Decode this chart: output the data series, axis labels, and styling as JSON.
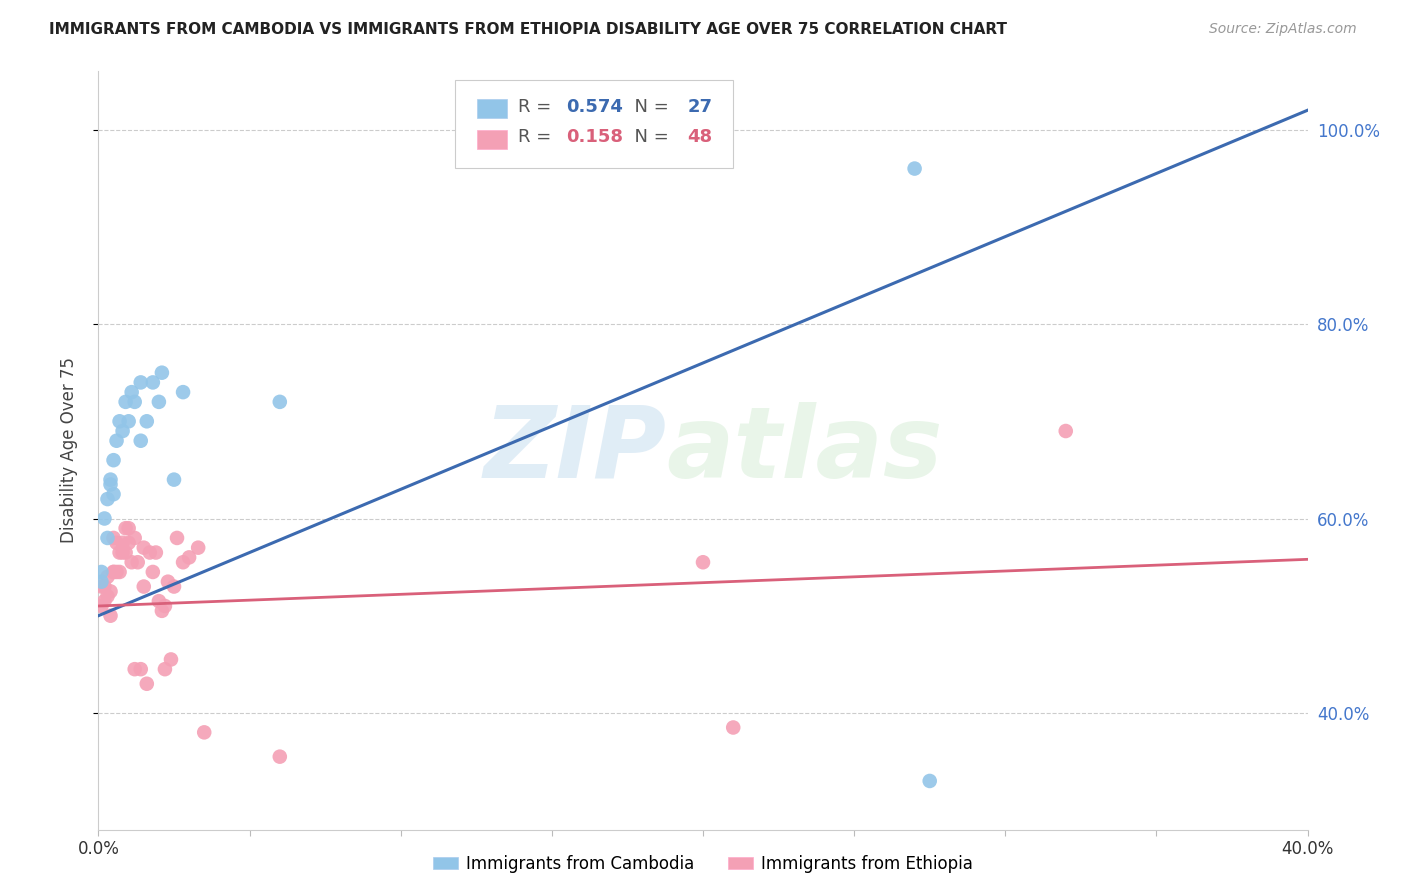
{
  "title": "IMMIGRANTS FROM CAMBODIA VS IMMIGRANTS FROM ETHIOPIA DISABILITY AGE OVER 75 CORRELATION CHART",
  "source": "Source: ZipAtlas.com",
  "ylabel": "Disability Age Over 75",
  "legend_label_blue": "Immigrants from Cambodia",
  "legend_label_pink": "Immigrants from Ethiopia",
  "r_blue": 0.574,
  "n_blue": 27,
  "r_pink": 0.158,
  "n_pink": 48,
  "xmin": 0.0,
  "xmax": 0.4,
  "ymin": 0.28,
  "ymax": 1.06,
  "y_ticks_right": [
    0.4,
    0.6,
    0.8,
    1.0
  ],
  "y_tick_labels_right": [
    "40.0%",
    "60.0%",
    "80.0%",
    "100.0%"
  ],
  "watermark_zip": "ZIP",
  "watermark_atlas": "atlas",
  "blue_color": "#92c5e8",
  "pink_color": "#f4a0b5",
  "line_blue": "#3c6ab0",
  "line_pink": "#d9607a",
  "cambodia_x": [
    0.001,
    0.001,
    0.002,
    0.003,
    0.003,
    0.004,
    0.004,
    0.005,
    0.005,
    0.006,
    0.007,
    0.008,
    0.009,
    0.01,
    0.011,
    0.012,
    0.014,
    0.014,
    0.016,
    0.018,
    0.02,
    0.021,
    0.025,
    0.028,
    0.06,
    0.27,
    0.275
  ],
  "cambodia_y": [
    0.535,
    0.545,
    0.6,
    0.58,
    0.62,
    0.635,
    0.64,
    0.625,
    0.66,
    0.68,
    0.7,
    0.69,
    0.72,
    0.7,
    0.73,
    0.72,
    0.74,
    0.68,
    0.7,
    0.74,
    0.72,
    0.75,
    0.64,
    0.73,
    0.72,
    0.96,
    0.33
  ],
  "ethiopia_x": [
    0.001,
    0.001,
    0.002,
    0.002,
    0.003,
    0.003,
    0.004,
    0.004,
    0.005,
    0.005,
    0.005,
    0.006,
    0.006,
    0.007,
    0.007,
    0.008,
    0.008,
    0.009,
    0.009,
    0.01,
    0.01,
    0.011,
    0.012,
    0.012,
    0.013,
    0.014,
    0.015,
    0.015,
    0.016,
    0.017,
    0.018,
    0.019,
    0.02,
    0.021,
    0.022,
    0.022,
    0.023,
    0.024,
    0.025,
    0.026,
    0.028,
    0.03,
    0.033,
    0.035,
    0.06,
    0.2,
    0.21,
    0.32
  ],
  "ethiopia_y": [
    0.51,
    0.53,
    0.515,
    0.53,
    0.52,
    0.54,
    0.5,
    0.525,
    0.545,
    0.545,
    0.58,
    0.545,
    0.575,
    0.545,
    0.565,
    0.565,
    0.575,
    0.565,
    0.59,
    0.575,
    0.59,
    0.555,
    0.58,
    0.445,
    0.555,
    0.445,
    0.53,
    0.57,
    0.43,
    0.565,
    0.545,
    0.565,
    0.515,
    0.505,
    0.445,
    0.51,
    0.535,
    0.455,
    0.53,
    0.58,
    0.555,
    0.56,
    0.57,
    0.38,
    0.355,
    0.555,
    0.385,
    0.69
  ],
  "line_blue_x0": 0.0,
  "line_blue_y0": 0.5,
  "line_blue_x1": 0.4,
  "line_blue_y1": 1.02,
  "line_pink_x0": 0.0,
  "line_pink_y0": 0.51,
  "line_pink_x1": 0.4,
  "line_pink_y1": 0.558
}
